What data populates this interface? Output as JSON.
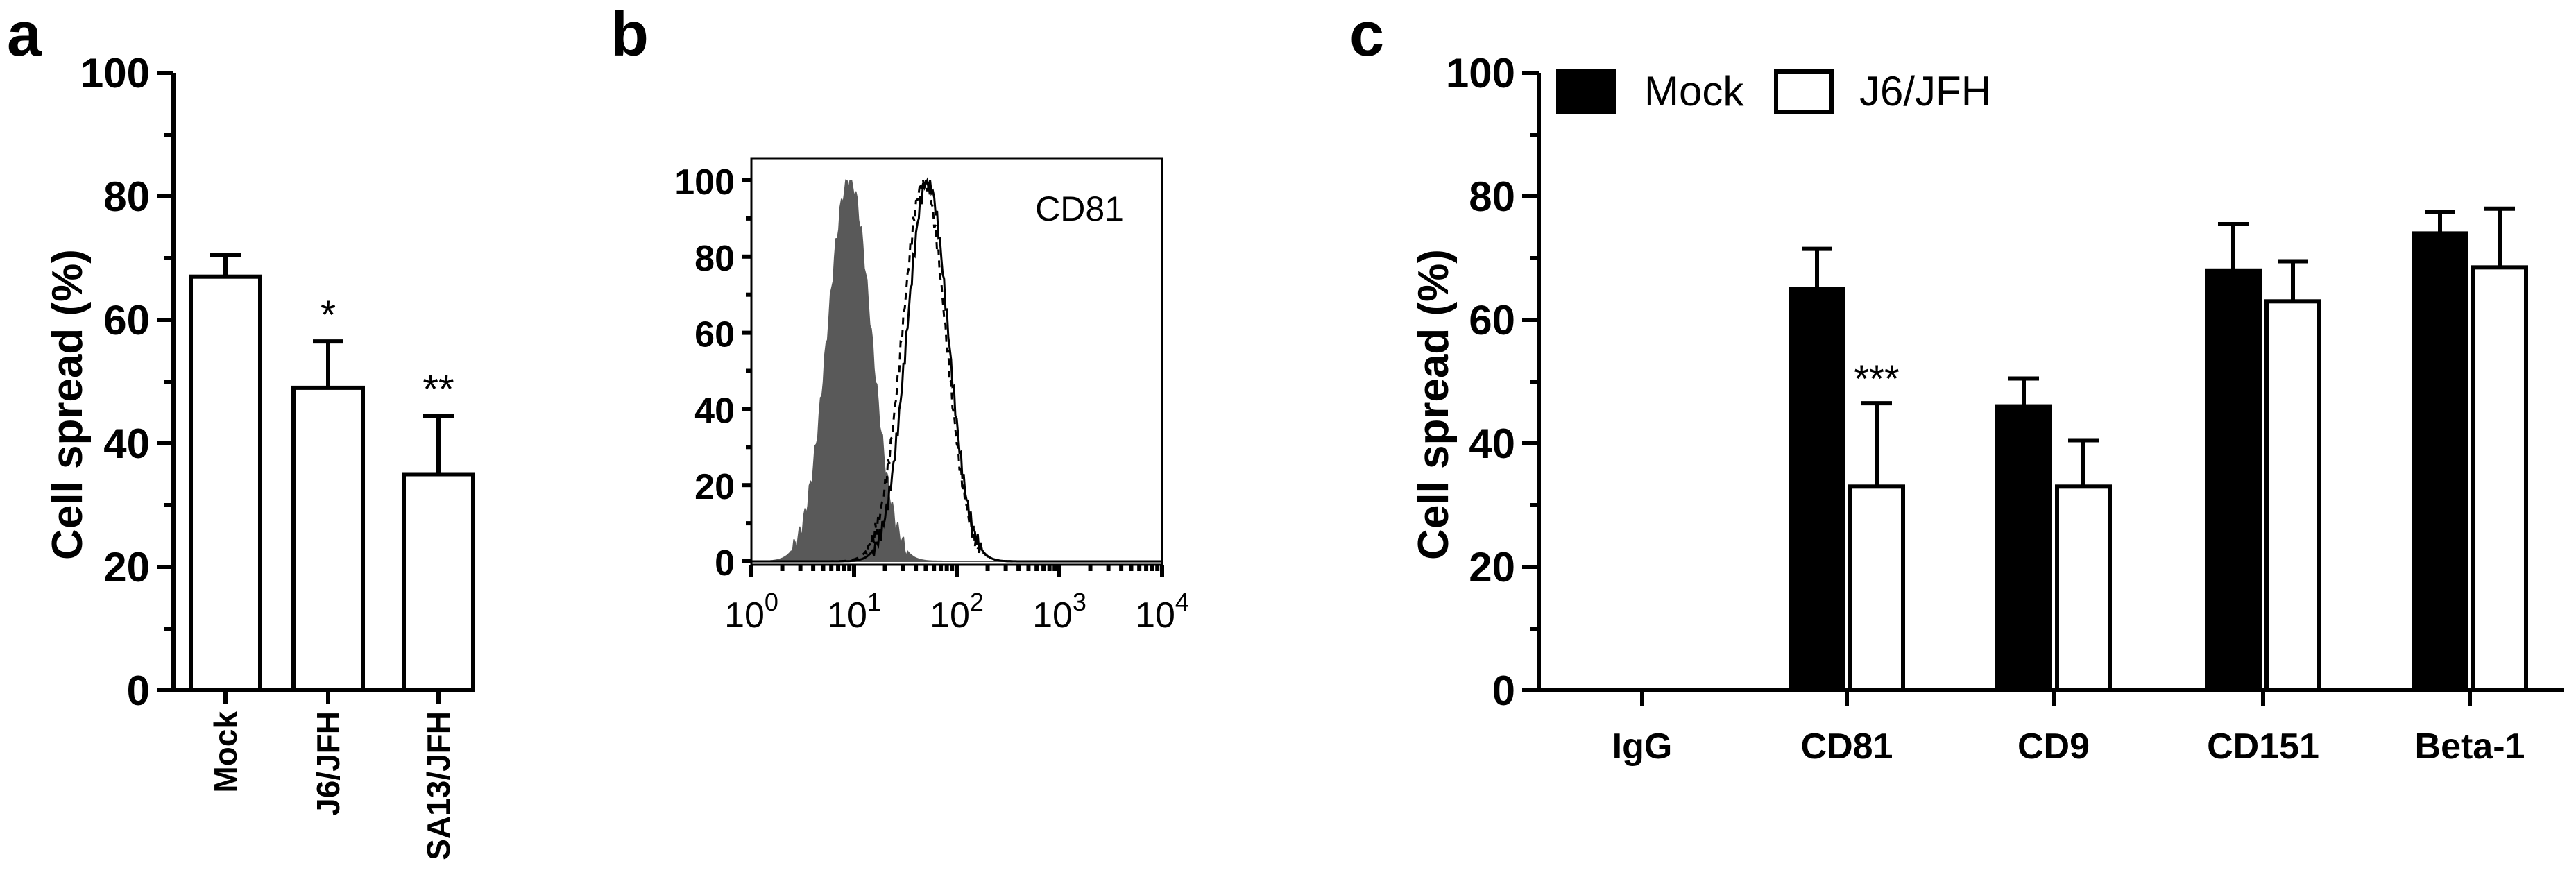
{
  "chart_data": [
    {
      "panel": "a",
      "type": "bar",
      "categories": [
        "Mock",
        "J6/JFH",
        "SA13/JFH"
      ],
      "values": [
        67,
        49,
        35
      ],
      "errors": [
        3.5,
        7.5,
        9.5
      ],
      "annotations": [
        "",
        "*",
        "**"
      ],
      "ylabel": "Cell spread (%)",
      "ylim": [
        0,
        100
      ],
      "yticks": [
        0,
        20,
        40,
        60,
        80,
        100
      ]
    },
    {
      "panel": "b",
      "type": "histogram",
      "label": "CD81",
      "xscale": "log",
      "xlim": [
        1,
        10000
      ],
      "xticks": [
        {
          "base": "10",
          "exp": "0"
        },
        {
          "base": "10",
          "exp": "1"
        },
        {
          "base": "10",
          "exp": "2"
        },
        {
          "base": "10",
          "exp": "3"
        },
        {
          "base": "10",
          "exp": "4"
        }
      ],
      "ylim": [
        0,
        100
      ],
      "yticks": [
        0,
        20,
        40,
        60,
        80,
        100
      ],
      "series": [
        {
          "name": "isotype (shaded)",
          "style": "filled-gray",
          "peak_x": 9,
          "log_sigma": 0.21
        },
        {
          "name": "solid line",
          "style": "solid",
          "peak_x": 52,
          "log_sigma": 0.2
        },
        {
          "name": "dashed line",
          "style": "dashed",
          "peak_x": 48,
          "log_sigma": 0.21
        }
      ]
    },
    {
      "panel": "c",
      "type": "bar",
      "categories": [
        "IgG",
        "CD81",
        "CD9",
        "CD151",
        "Beta-1"
      ],
      "series": [
        {
          "name": "Mock",
          "values": [
            0,
            65,
            46,
            68,
            74
          ],
          "errors": [
            0,
            6.5,
            4.5,
            7.5,
            3.5
          ]
        },
        {
          "name": "J6/JFH",
          "values": [
            0,
            33,
            33,
            63,
            68.5
          ],
          "errors": [
            0,
            13.5,
            7.5,
            6.5,
            9.5
          ]
        }
      ],
      "annotations": [
        {
          "category": "CD81",
          "series": "J6/JFH",
          "text": "***"
        }
      ],
      "ylabel": "Cell spread (%)",
      "ylim": [
        0,
        100
      ],
      "yticks": [
        0,
        20,
        40,
        60,
        80,
        100
      ]
    }
  ],
  "panel_labels": {
    "a": "a",
    "b": "b",
    "c": "c"
  }
}
